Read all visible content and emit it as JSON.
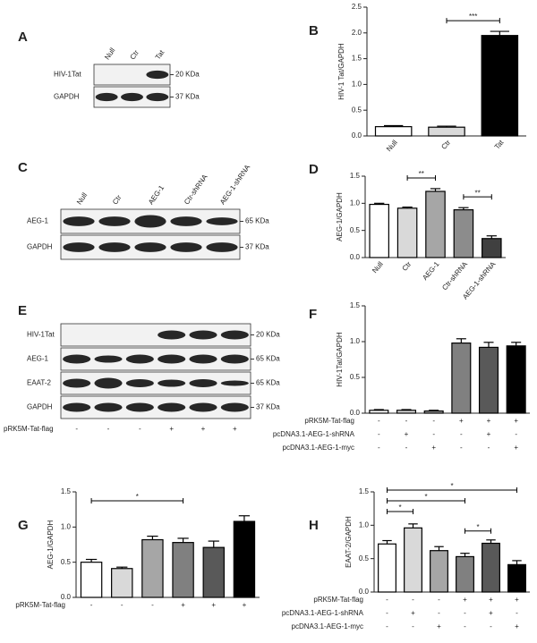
{
  "blots": [
    {
      "panel": "A",
      "lanes": [
        "Null",
        "Ctr",
        "Tat"
      ],
      "rows": [
        {
          "name": "HIV-1Tat",
          "size": "20 KDa"
        },
        {
          "name": "GAPDH",
          "size": "37 KDa"
        }
      ]
    },
    {
      "panel": "C",
      "lanes": [
        "Null",
        "Ctr",
        "AEG-1",
        "Ctr-shRNA",
        "AEG-1-shRNA"
      ],
      "rows": [
        {
          "name": "AEG-1",
          "size": "65 KDa"
        },
        {
          "name": "GAPDH",
          "size": "37 KDa"
        }
      ]
    },
    {
      "panel": "E",
      "rows": [
        {
          "name": "HIV-1Tat",
          "size": "20 KDa"
        },
        {
          "name": "AEG-1",
          "size": "65 KDa"
        },
        {
          "name": "EAAT-2",
          "size": "65 KDa"
        },
        {
          "name": "GAPDH",
          "size": "37 KDa"
        }
      ],
      "treatments": [
        {
          "name": "pRK5M-Tat-flag",
          "signs": [
            "-",
            "-",
            "-",
            "+",
            "+",
            "+"
          ]
        }
      ]
    }
  ],
  "chart_data": [
    {
      "type": "bar",
      "panel": "B",
      "ylabel": "HIV-1 Tat/GAPDH",
      "categories": [
        "Null",
        "Ctr",
        "Tat"
      ],
      "values": [
        0.18,
        0.17,
        1.95
      ],
      "errors": [
        0.02,
        0.02,
        0.08
      ],
      "colors": [
        "#ffffff",
        "#d9d9d9",
        "#000000"
      ],
      "ylim": [
        0,
        2.5
      ],
      "yticks": [
        {
          "value": 0,
          "label": "0.0"
        },
        0.5,
        {
          "value": 1,
          "label": "1.0"
        },
        1.5,
        {
          "value": 2,
          "label": "2.0"
        },
        2.5
      ],
      "significance": [
        {
          "label": "***",
          "categories": [
            "Ctr",
            "Tat"
          ]
        }
      ]
    },
    {
      "type": "bar",
      "panel": "D",
      "ylabel": "AEG-1/GAPDH",
      "categories": [
        "Null",
        "Ctr",
        "AEG-1",
        "Ctr-shRNA",
        "AEG-1-shRNA"
      ],
      "values": [
        0.98,
        0.91,
        1.22,
        0.88,
        0.35
      ],
      "errors": [
        0.02,
        0.02,
        0.05,
        0.04,
        0.05
      ],
      "colors": [
        "#ffffff",
        "#d9d9d9",
        "#a6a6a6",
        "#8c8c8c",
        "#404040"
      ],
      "ylim": [
        0,
        1.5
      ],
      "yticks": [
        {
          "value": 0,
          "label": "0.0"
        },
        0.5,
        {
          "value": 1,
          "label": "1.0"
        },
        1.5
      ],
      "significance": [
        {
          "label": "**",
          "categories": [
            "Ctr",
            "AEG-1"
          ]
        },
        {
          "label": "**",
          "categories": [
            "Ctr-shRNA",
            "AEG-1-shRNA"
          ]
        }
      ]
    },
    {
      "type": "bar",
      "panel": "F",
      "ylabel": "HIV-1Tat/GAPDH",
      "values": [
        0.04,
        0.04,
        0.03,
        0.98,
        0.92,
        0.94
      ],
      "errors": [
        0.01,
        0.01,
        0.01,
        0.06,
        0.07,
        0.05
      ],
      "colors": [
        "#ffffff",
        "#d9d9d9",
        "#a6a6a6",
        "#808080",
        "#595959",
        "#000000"
      ],
      "ylim": [
        0,
        1.5
      ],
      "yticks": [
        {
          "value": 0,
          "label": "0.0"
        },
        0.5,
        {
          "value": 1,
          "label": "1.0"
        },
        1.5
      ],
      "treatments": [
        {
          "name": "pRK5M-Tat-flag",
          "signs": [
            "-",
            "-",
            "-",
            "+",
            "+",
            "+"
          ]
        },
        {
          "name": "pcDNA3.1-AEG-1-shRNA",
          "signs": [
            "-",
            "+",
            "-",
            "-",
            "+",
            "-"
          ]
        },
        {
          "name": "pcDNA3.1-AEG-1-myc",
          "signs": [
            "-",
            "-",
            "+",
            "-",
            "-",
            "+"
          ]
        }
      ]
    },
    {
      "type": "bar",
      "panel": "G",
      "ylabel": "AEG-1/GAPDH",
      "values": [
        0.5,
        0.41,
        0.82,
        0.78,
        0.71,
        1.08
      ],
      "errors": [
        0.04,
        0.02,
        0.05,
        0.06,
        0.09,
        0.08
      ],
      "colors": [
        "#ffffff",
        "#d9d9d9",
        "#a6a6a6",
        "#808080",
        "#595959",
        "#000000"
      ],
      "ylim": [
        0,
        1.5
      ],
      "yticks": [
        {
          "value": 0,
          "label": "0.0"
        },
        0.5,
        {
          "value": 1,
          "label": "1.0"
        },
        1.5
      ],
      "significance": [
        {
          "label": "*",
          "bars": [
            0,
            3
          ]
        }
      ],
      "treatments": [
        {
          "name": "pRK5M-Tat-flag",
          "signs": [
            "-",
            "-",
            "-",
            "+",
            "+",
            "+"
          ]
        }
      ]
    },
    {
      "type": "bar",
      "panel": "H",
      "ylabel": "EAAT-2/GAPDH",
      "values": [
        0.72,
        0.96,
        0.62,
        0.53,
        0.73,
        0.41
      ],
      "errors": [
        0.05,
        0.06,
        0.06,
        0.05,
        0.05,
        0.06
      ],
      "colors": [
        "#ffffff",
        "#d9d9d9",
        "#a6a6a6",
        "#808080",
        "#595959",
        "#000000"
      ],
      "ylim": [
        0,
        1.5
      ],
      "yticks": [
        {
          "value": 0,
          "label": "0.0"
        },
        0.5,
        {
          "value": 1,
          "label": "1.0"
        },
        1.5
      ],
      "significance": [
        {
          "label": "*",
          "bars": [
            0,
            1
          ]
        },
        {
          "label": "*",
          "bars": [
            0,
            3
          ]
        },
        {
          "label": "*",
          "bars": [
            0,
            5
          ]
        },
        {
          "label": "*",
          "bars": [
            3,
            4
          ]
        }
      ],
      "treatments": [
        {
          "name": "pRK5M-Tat-flag",
          "signs": [
            "-",
            "-",
            "-",
            "+",
            "+",
            "+"
          ]
        },
        {
          "name": "pcDNA3.1-AEG-1-shRNA",
          "signs": [
            "-",
            "+",
            "-",
            "-",
            "+",
            "-"
          ]
        },
        {
          "name": "pcDNA3.1-AEG-1-myc",
          "signs": [
            "-",
            "-",
            "+",
            "-",
            "-",
            "+"
          ]
        }
      ]
    }
  ]
}
